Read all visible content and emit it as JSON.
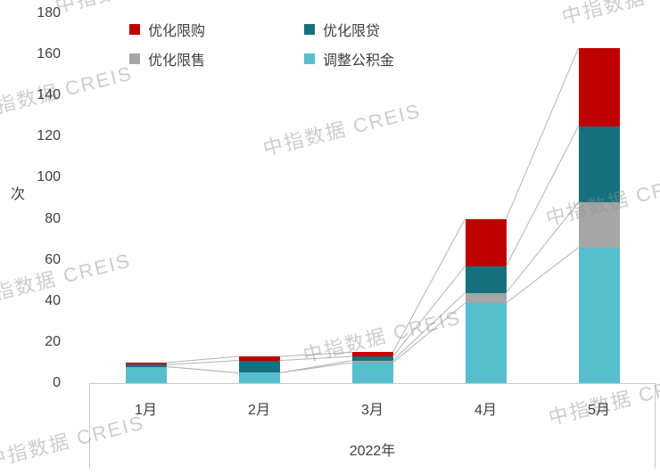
{
  "watermark": {
    "text": "中指数据 CREIS"
  },
  "chart_data": {
    "type": "bar",
    "stacked": true,
    "title": "",
    "categories": [
      "1月",
      "2月",
      "3月",
      "4月",
      "5月"
    ],
    "x_title": "2022年",
    "ylabel": "次",
    "ylim": [
      0,
      180
    ],
    "y_ticks": [
      0,
      20,
      40,
      60,
      80,
      100,
      120,
      140,
      160,
      180
    ],
    "grid": false,
    "legend_position": "top",
    "connector_lines": true,
    "series": [
      {
        "name": "优化限购",
        "color": "#c00000",
        "values": [
          1,
          2,
          2,
          23,
          38
        ]
      },
      {
        "name": "优化限贷",
        "color": "#17707e",
        "values": [
          1,
          6,
          2,
          13,
          37
        ]
      },
      {
        "name": "优化限售",
        "color": "#a6a6a6",
        "values": [
          0,
          0,
          1,
          5,
          22
        ]
      },
      {
        "name": "调整公积金",
        "color": "#56bfcb",
        "values": [
          8,
          5,
          10,
          39,
          66
        ]
      }
    ],
    "stack_order_bottom_to_top": [
      "调整公积金",
      "优化限售",
      "优化限贷",
      "优化限购"
    ],
    "totals": [
      10,
      13,
      15,
      80,
      163
    ]
  }
}
